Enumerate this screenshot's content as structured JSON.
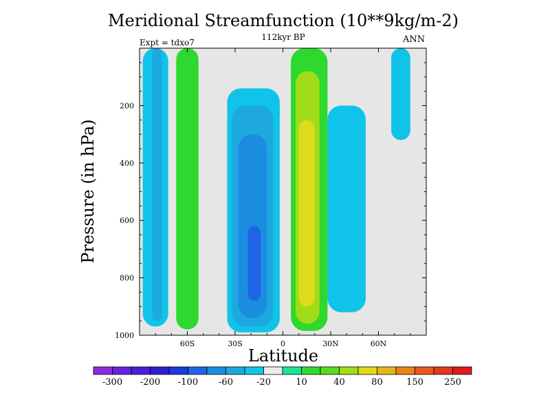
{
  "chart_data": {
    "type": "contour",
    "title": "Meridional Streamfunction (10**9kg/m-2)",
    "subtitle": "112kyr BP",
    "left_label": "Expt = tdxo7",
    "right_label": "ANN",
    "xlabel": "Latitude",
    "ylabel": "Pressure (in hPa)",
    "xlim": [
      -90,
      90
    ],
    "ylim": [
      1000,
      0
    ],
    "xticks": [
      {
        "value": -60,
        "label": "60S"
      },
      {
        "value": -30,
        "label": "30S"
      },
      {
        "value": 0,
        "label": "0"
      },
      {
        "value": 30,
        "label": "30N"
      },
      {
        "value": 60,
        "label": "60N"
      }
    ],
    "yticks": [
      {
        "value": 200,
        "label": "200"
      },
      {
        "value": 400,
        "label": "400"
      },
      {
        "value": 600,
        "label": "600"
      },
      {
        "value": 800,
        "label": "800"
      },
      {
        "value": 1000,
        "label": "1000"
      }
    ],
    "background_color": "#e6e6e6",
    "colorbar": {
      "colors": [
        "#8a2be2",
        "#6a22e0",
        "#4b1fd8",
        "#2d1fd2",
        "#1a3adb",
        "#1f63e6",
        "#1a8de0",
        "#1ea8e0",
        "#10c3e8",
        "#ececec",
        "#1ee28f",
        "#2ed82e",
        "#56dc1f",
        "#a0dc18",
        "#dcdc1a",
        "#e8b61a",
        "#e8821a",
        "#e8581a",
        "#e03a1a",
        "#e01a1a"
      ],
      "labels": [
        {
          "after_index": 0,
          "text": "-300"
        },
        {
          "after_index": 2,
          "text": "-200"
        },
        {
          "after_index": 4,
          "text": "-100"
        },
        {
          "after_index": 6,
          "text": "-60"
        },
        {
          "after_index": 8,
          "text": "-20"
        },
        {
          "after_index": 10,
          "text": "10"
        },
        {
          "after_index": 12,
          "text": "40"
        },
        {
          "after_index": 14,
          "text": "80"
        },
        {
          "after_index": 16,
          "text": "150"
        },
        {
          "after_index": 18,
          "text": "250"
        }
      ]
    },
    "regions": [
      {
        "name": "polar-cell-sh-outer",
        "color": "#10c3e8",
        "level": -20,
        "lat_range": [
          -88,
          -72
        ],
        "p_range": [
          0,
          970
        ]
      },
      {
        "name": "polar-cell-sh-inner",
        "color": "#1ea8e0",
        "level": -40,
        "lat_range": [
          -82,
          -76
        ],
        "p_range": [
          0,
          950
        ]
      },
      {
        "name": "ferrel-cell-sh",
        "color": "#2ed82e",
        "level": 30,
        "lat_range": [
          -67,
          -53
        ],
        "p_range": [
          0,
          980
        ]
      },
      {
        "name": "hadley-cell-sh-outer",
        "color": "#10c3e8",
        "level": -20,
        "lat_range": [
          -35,
          -2
        ],
        "p_range": [
          140,
          990
        ]
      },
      {
        "name": "hadley-cell-sh-mid",
        "color": "#1ea8e0",
        "level": -40,
        "lat_range": [
          -32,
          -6
        ],
        "p_range": [
          200,
          970
        ]
      },
      {
        "name": "hadley-cell-sh-inner",
        "color": "#1a8de0",
        "level": -60,
        "lat_range": [
          -28,
          -10
        ],
        "p_range": [
          300,
          940
        ]
      },
      {
        "name": "hadley-cell-sh-core",
        "color": "#1f63e6",
        "level": -100,
        "lat_range": [
          -22,
          -14
        ],
        "p_range": [
          620,
          880
        ]
      },
      {
        "name": "hadley-cell-nh-outer",
        "color": "#2ed82e",
        "level": 30,
        "lat_range": [
          5,
          28
        ],
        "p_range": [
          0,
          985
        ]
      },
      {
        "name": "hadley-cell-nh-mid",
        "color": "#a0dc18",
        "level": 60,
        "lat_range": [
          8,
          23
        ],
        "p_range": [
          80,
          960
        ]
      },
      {
        "name": "hadley-cell-nh-core",
        "color": "#dcdc1a",
        "level": 80,
        "lat_range": [
          10,
          20
        ],
        "p_range": [
          250,
          900
        ]
      },
      {
        "name": "ferrel-cell-nh",
        "color": "#10c3e8",
        "level": -20,
        "lat_range": [
          28,
          52
        ],
        "p_range": [
          200,
          920
        ]
      },
      {
        "name": "polar-cell-nh",
        "color": "#10c3e8",
        "level": -20,
        "lat_range": [
          68,
          80
        ],
        "p_range": [
          0,
          320
        ]
      }
    ]
  }
}
